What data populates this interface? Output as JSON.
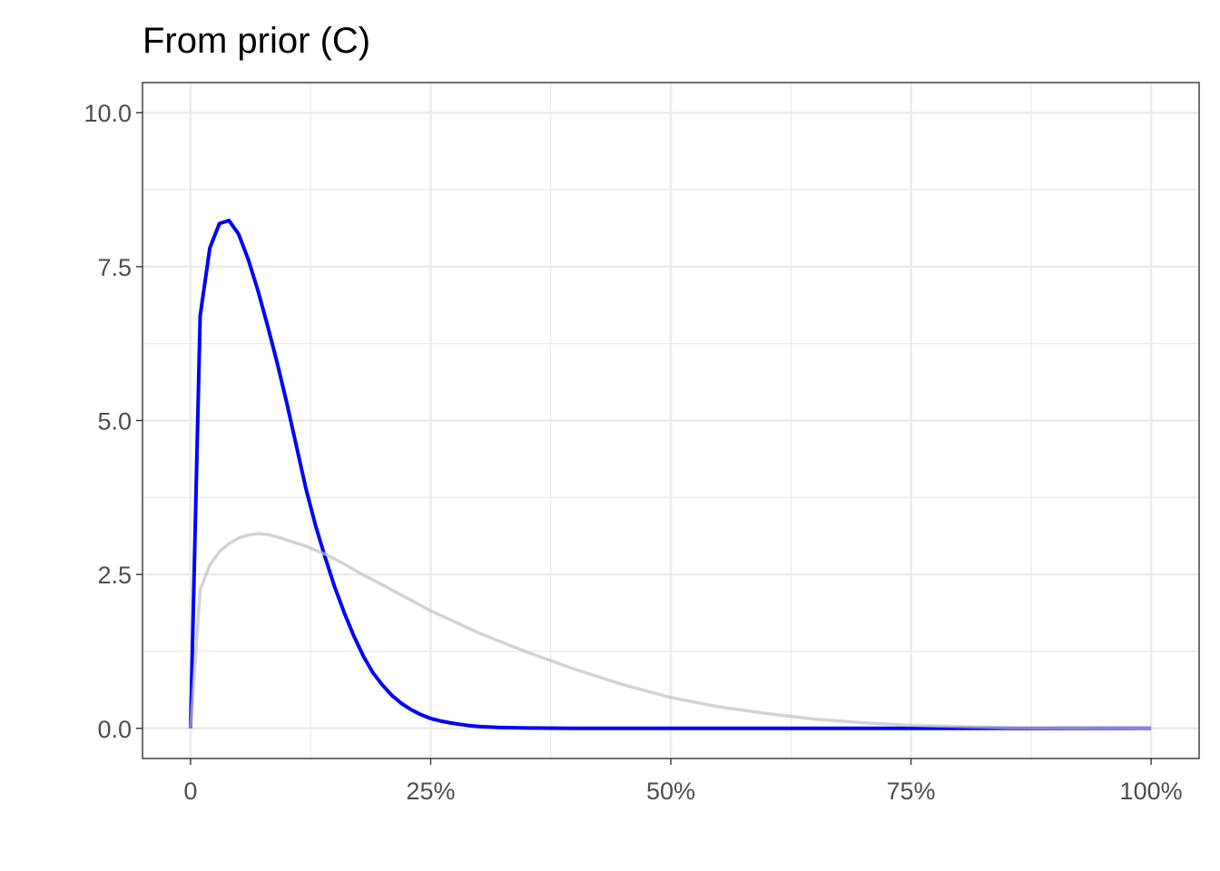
{
  "chart_data": {
    "type": "line",
    "title": "From prior (C)",
    "xlabel": "",
    "ylabel": "",
    "xlim": [
      -5,
      105
    ],
    "ylim": [
      -0.49,
      10.49
    ],
    "x_unit": "percent",
    "x_ticks": [
      0,
      25,
      50,
      75,
      100
    ],
    "x_tick_labels": [
      "0",
      "25%",
      "50%",
      "75%",
      "100%"
    ],
    "y_ticks": [
      0,
      2.5,
      5,
      7.5,
      10
    ],
    "y_tick_labels": [
      "0.0",
      "2.5",
      "5.0",
      "7.5",
      "10.0"
    ],
    "grid": true,
    "legend": "none",
    "series": [
      {
        "color": "#0000ff",
        "x": [
          0,
          1,
          2,
          3,
          4,
          5,
          6,
          7,
          8,
          9,
          10,
          11,
          12,
          13,
          14,
          15,
          16,
          17,
          18,
          19,
          20,
          21,
          22,
          23,
          24,
          25,
          26,
          27,
          28,
          29,
          30,
          32,
          35,
          40,
          50,
          60,
          70,
          80,
          90,
          100
        ],
        "y": [
          0,
          6.7,
          7.8,
          8.2,
          8.25,
          8.03,
          7.62,
          7.12,
          6.55,
          5.95,
          5.3,
          4.6,
          3.9,
          3.3,
          2.78,
          2.3,
          1.88,
          1.5,
          1.17,
          0.9,
          0.7,
          0.53,
          0.4,
          0.3,
          0.22,
          0.16,
          0.12,
          0.09,
          0.065,
          0.045,
          0.03,
          0.015,
          0.005,
          0,
          0,
          0,
          0,
          0,
          0,
          0
        ]
      },
      {
        "color": "#bfbfbf",
        "x": [
          0,
          1,
          2,
          3,
          4,
          5,
          6,
          7,
          8,
          9,
          10,
          12,
          14,
          16,
          18,
          20,
          22,
          25,
          30,
          35,
          40,
          45,
          50,
          55,
          60,
          65,
          70,
          75,
          80,
          85,
          90,
          100
        ],
        "y": [
          0,
          2.25,
          2.65,
          2.87,
          3.0,
          3.09,
          3.14,
          3.16,
          3.15,
          3.11,
          3.06,
          2.96,
          2.83,
          2.67,
          2.49,
          2.33,
          2.16,
          1.91,
          1.55,
          1.24,
          0.96,
          0.71,
          0.5,
          0.35,
          0.24,
          0.15,
          0.09,
          0.05,
          0.03,
          0.01,
          0.005,
          0
        ]
      }
    ]
  }
}
